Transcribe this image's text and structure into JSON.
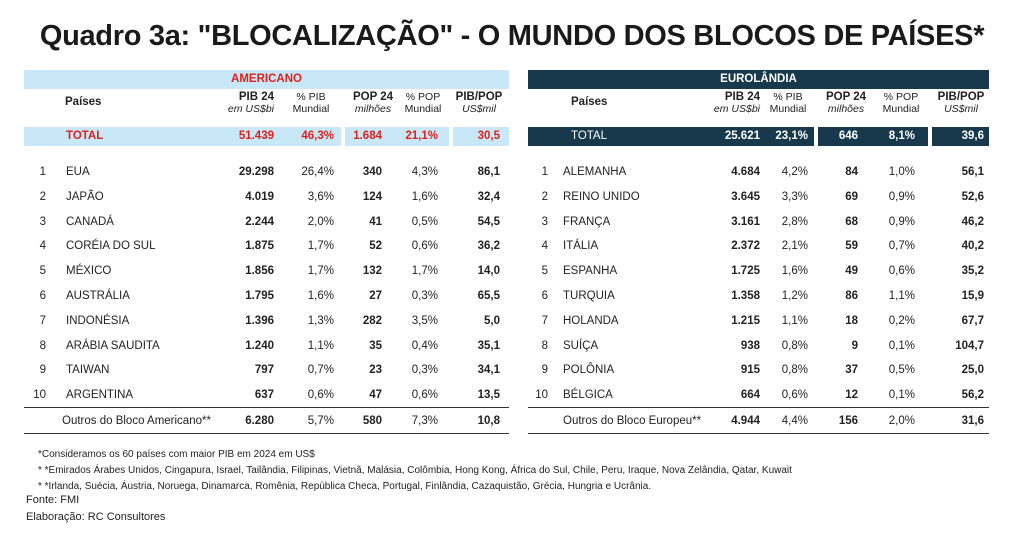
{
  "title": "Quadro 3a: \"BLOCALIZAÇÃO\" - O MUNDO DOS BLOCOS DE PAÍSES*",
  "colors": {
    "americano_band": "#c9e8f7",
    "americano_text": "#e0201b",
    "euro_band": "#17394b",
    "euro_text": "#ffffff"
  },
  "americano": {
    "label": "AMERICANO",
    "headers": {
      "paises": "Países",
      "pib": "PIB 24",
      "pib_unit": "em US$bi",
      "pct_pib": "% PIB",
      "pct_pib_sub": "Mundial",
      "pop": "POP 24",
      "pop_unit": "milhões",
      "pct_pop": "% POP",
      "pct_pop_sub": "Mundial",
      "pibpop": "PIB/POP",
      "pibpop_unit": "US$mil"
    },
    "total": {
      "label": "TOTAL",
      "pib": "51.439",
      "pct_pib": "46,3%",
      "pop": "1.684",
      "pct_pop": "21,1%",
      "pibpop": "30,5"
    },
    "rows": [
      {
        "n": "1",
        "pais": "EUA",
        "pib": "29.298",
        "pct_pib": "26,4%",
        "pop": "340",
        "pct_pop": "4,3%",
        "pibpop": "86,1"
      },
      {
        "n": "2",
        "pais": "JAPÃO",
        "pib": "4.019",
        "pct_pib": "3,6%",
        "pop": "124",
        "pct_pop": "1,6%",
        "pibpop": "32,4"
      },
      {
        "n": "3",
        "pais": "CANADÁ",
        "pib": "2.244",
        "pct_pib": "2,0%",
        "pop": "41",
        "pct_pop": "0,5%",
        "pibpop": "54,5"
      },
      {
        "n": "4",
        "pais": "CORÉIA DO SUL",
        "pib": "1.875",
        "pct_pib": "1,7%",
        "pop": "52",
        "pct_pop": "0,6%",
        "pibpop": "36,2"
      },
      {
        "n": "5",
        "pais": "MÉXICO",
        "pib": "1.856",
        "pct_pib": "1,7%",
        "pop": "132",
        "pct_pop": "1,7%",
        "pibpop": "14,0"
      },
      {
        "n": "6",
        "pais": "AUSTRÁLIA",
        "pib": "1.795",
        "pct_pib": "1,6%",
        "pop": "27",
        "pct_pop": "0,3%",
        "pibpop": "65,5"
      },
      {
        "n": "7",
        "pais": "INDONÉSIA",
        "pib": "1.396",
        "pct_pib": "1,3%",
        "pop": "282",
        "pct_pop": "3,5%",
        "pibpop": "5,0"
      },
      {
        "n": "8",
        "pais": "ARÁBIA SAUDITA",
        "pib": "1.240",
        "pct_pib": "1,1%",
        "pop": "35",
        "pct_pop": "0,4%",
        "pibpop": "35,1"
      },
      {
        "n": "9",
        "pais": "TAIWAN",
        "pib": "797",
        "pct_pib": "0,7%",
        "pop": "23",
        "pct_pop": "0,3%",
        "pibpop": "34,1"
      },
      {
        "n": "10",
        "pais": "ARGENTINA",
        "pib": "637",
        "pct_pib": "0,6%",
        "pop": "47",
        "pct_pop": "0,6%",
        "pibpop": "13,5"
      }
    ],
    "outros": {
      "label": "Outros do Bloco Americano**",
      "pib": "6.280",
      "pct_pib": "5,7%",
      "pop": "580",
      "pct_pop": "7,3%",
      "pibpop": "10,8"
    }
  },
  "euro": {
    "label": "EUROLÂNDIA",
    "headers": {
      "paises": "Países",
      "pib": "PIB 24",
      "pib_unit": "em US$bi",
      "pct_pib": "% PIB",
      "pct_pib_sub": "Mundial",
      "pop": "POP 24",
      "pop_unit": "milhões",
      "pct_pop": "% POP",
      "pct_pop_sub": "Mundial",
      "pibpop": "PIB/POP",
      "pibpop_unit": "US$mil"
    },
    "total": {
      "label": "TOTAL",
      "pib": "25.621",
      "pct_pib": "23,1%",
      "pop": "646",
      "pct_pop": "8,1%",
      "pibpop": "39,6"
    },
    "rows": [
      {
        "n": "1",
        "pais": "ALEMANHA",
        "pib": "4.684",
        "pct_pib": "4,2%",
        "pop": "84",
        "pct_pop": "1,0%",
        "pibpop": "56,1"
      },
      {
        "n": "2",
        "pais": "REINO UNIDO",
        "pib": "3.645",
        "pct_pib": "3,3%",
        "pop": "69",
        "pct_pop": "0,9%",
        "pibpop": "52,6"
      },
      {
        "n": "3",
        "pais": "FRANÇA",
        "pib": "3.161",
        "pct_pib": "2,8%",
        "pop": "68",
        "pct_pop": "0,9%",
        "pibpop": "46,2"
      },
      {
        "n": "4",
        "pais": "ITÁLIA",
        "pib": "2.372",
        "pct_pib": "2,1%",
        "pop": "59",
        "pct_pop": "0,7%",
        "pibpop": "40,2"
      },
      {
        "n": "5",
        "pais": "ESPANHA",
        "pib": "1.725",
        "pct_pib": "1,6%",
        "pop": "49",
        "pct_pop": "0,6%",
        "pibpop": "35,2"
      },
      {
        "n": "6",
        "pais": "TURQUIA",
        "pib": "1.358",
        "pct_pib": "1,2%",
        "pop": "86",
        "pct_pop": "1,1%",
        "pibpop": "15,9"
      },
      {
        "n": "7",
        "pais": "HOLANDA",
        "pib": "1.215",
        "pct_pib": "1,1%",
        "pop": "18",
        "pct_pop": "0,2%",
        "pibpop": "67,7"
      },
      {
        "n": "8",
        "pais": "SUÍÇA",
        "pib": "938",
        "pct_pib": "0,8%",
        "pop": "9",
        "pct_pop": "0,1%",
        "pibpop": "104,7"
      },
      {
        "n": "9",
        "pais": "POLÔNIA",
        "pib": "915",
        "pct_pib": "0,8%",
        "pop": "37",
        "pct_pop": "0,5%",
        "pibpop": "25,0"
      },
      {
        "n": "10",
        "pais": "BÉLGICA",
        "pib": "664",
        "pct_pib": "0,6%",
        "pop": "12",
        "pct_pop": "0,1%",
        "pibpop": "56,2"
      }
    ],
    "outros": {
      "label": "Outros do Bloco Europeu**",
      "pib": "4.944",
      "pct_pib": "4,4%",
      "pop": "156",
      "pct_pop": "2,0%",
      "pibpop": "31,6"
    }
  },
  "footnotes": [
    "*Consideramos os 60 países com maior PIB em 2024 em US$",
    "* *Emirados Árabes Unidos, Cingapura, Israel, Tailândia, Filipinas, Vietnã, Malásia, Colômbia, Hong Kong, África do Sul, Chile, Peru, Iraque, Nova Zelândia, Qatar, Kuwait",
    "* *Irlanda, Suécia, Áustria, Noruega, Dinamarca, Romênia, República Checa, Portugal, Finlândia, Cazaquistão, Grécia, Hungria e Ucrânia."
  ],
  "source": "Fonte: FMI",
  "author": "Elaboração: RC Consultores"
}
